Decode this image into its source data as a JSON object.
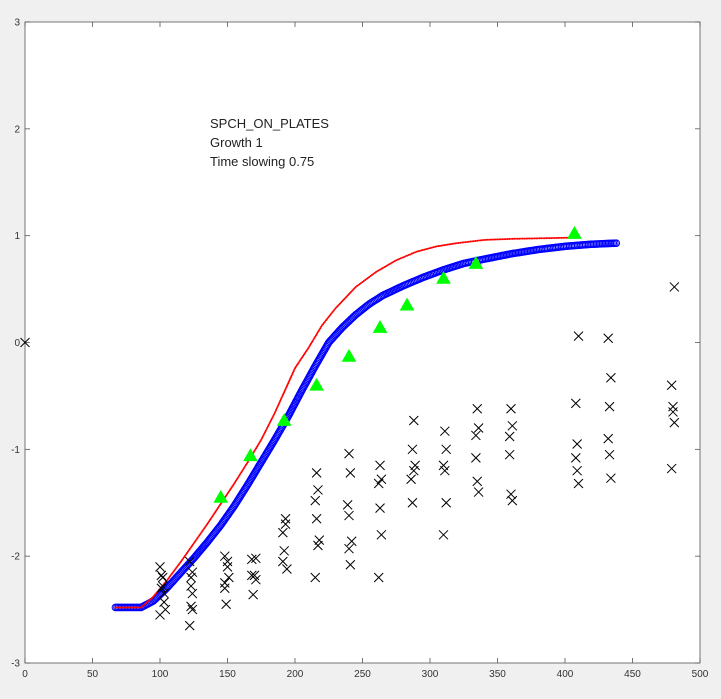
{
  "chart_data": {
    "type": "scatter",
    "title": "",
    "xlabel": "",
    "ylabel": "",
    "xlim": [
      0,
      500
    ],
    "ylim": [
      -3,
      3
    ],
    "xticks": [
      0,
      50,
      100,
      150,
      200,
      250,
      300,
      350,
      400,
      450,
      500
    ],
    "yticks": [
      -3,
      -2,
      -1,
      0,
      1,
      2,
      3
    ],
    "grid": false,
    "legend": "none",
    "annotation_lines": [
      "SPCH_ON_PLATES",
      "Growth 1",
      "Time slowing 0.75"
    ],
    "series": [
      {
        "kind": "line-dots",
        "color": "#ff0000",
        "x": [
          67,
          86,
          95,
          105,
          115,
          125,
          135,
          145,
          155,
          165,
          175,
          185,
          195,
          200,
          210,
          220,
          230,
          245,
          260,
          275,
          290,
          305,
          320,
          340,
          360,
          380,
          400,
          410
        ],
        "y": [
          -2.48,
          -2.48,
          -2.38,
          -2.23,
          -2.06,
          -1.88,
          -1.7,
          -1.51,
          -1.32,
          -1.12,
          -0.91,
          -0.66,
          -0.38,
          -0.24,
          -0.05,
          0.16,
          0.32,
          0.52,
          0.66,
          0.77,
          0.85,
          0.9,
          0.93,
          0.96,
          0.97,
          0.975,
          0.98,
          0.98
        ]
      },
      {
        "kind": "circles",
        "color": "#0000ff",
        "x": [
          67,
          86,
          95,
          105,
          115,
          125,
          135,
          145,
          155,
          165,
          175,
          185,
          195,
          205,
          215,
          225,
          235,
          245,
          255,
          265,
          280,
          295,
          310,
          325,
          340,
          360,
          380,
          400,
          420,
          438
        ],
        "y": [
          -2.48,
          -2.48,
          -2.42,
          -2.3,
          -2.16,
          -2.02,
          -1.87,
          -1.71,
          -1.53,
          -1.33,
          -1.12,
          -0.91,
          -0.69,
          -0.45,
          -0.22,
          0.0,
          0.14,
          0.26,
          0.36,
          0.44,
          0.53,
          0.61,
          0.68,
          0.74,
          0.78,
          0.83,
          0.87,
          0.9,
          0.92,
          0.93
        ]
      },
      {
        "kind": "triangles",
        "color": "#00ff00",
        "x": [
          145,
          167,
          192,
          216,
          240,
          263,
          283,
          310,
          334,
          407
        ],
        "y": [
          -1.45,
          -1.06,
          -0.73,
          -0.4,
          -0.13,
          0.14,
          0.35,
          0.6,
          0.74,
          1.02
        ]
      },
      {
        "kind": "crosses",
        "color": "#000000",
        "x": [
          0,
          100,
          102,
          103,
          104,
          100,
          101,
          102,
          103,
          101,
          122,
          123,
          124,
          122,
          123,
          124,
          123,
          124,
          148,
          150,
          148,
          149,
          151,
          150,
          148,
          168,
          170,
          169,
          171,
          168,
          171,
          193,
          191,
          192,
          194,
          191,
          193,
          216,
          217,
          215,
          216,
          218,
          215,
          217,
          240,
          241,
          239,
          240,
          242,
          240,
          241,
          263,
          264,
          262,
          263,
          264,
          262,
          288,
          287,
          289,
          288,
          286,
          287,
          311,
          312,
          310,
          311,
          312,
          310,
          335,
          336,
          334,
          335,
          336,
          334,
          360,
          361,
          359,
          360,
          361,
          359,
          410,
          408,
          409,
          408,
          410,
          409,
          432,
          434,
          433,
          432,
          433,
          434,
          481,
          479,
          480,
          481,
          479,
          480
        ],
        "y": [
          0.0,
          -2.1,
          -2.2,
          -2.35,
          -2.5,
          -2.55,
          -2.18,
          -2.28,
          -2.43,
          -2.3,
          -2.05,
          -2.2,
          -2.35,
          -2.65,
          -2.47,
          -2.15,
          -2.28,
          -2.5,
          -2.0,
          -2.1,
          -2.3,
          -2.45,
          -2.2,
          -2.05,
          -2.25,
          -2.03,
          -2.18,
          -2.36,
          -2.22,
          -2.18,
          -2.02,
          -1.65,
          -1.78,
          -1.95,
          -2.12,
          -2.05,
          -1.7,
          -1.22,
          -1.38,
          -1.48,
          -1.65,
          -1.85,
          -2.2,
          -1.9,
          -1.04,
          -1.22,
          -1.52,
          -1.62,
          -1.86,
          -1.93,
          -2.08,
          -1.15,
          -1.28,
          -1.32,
          -1.55,
          -1.8,
          -2.2,
          -0.73,
          -1.0,
          -1.15,
          -1.2,
          -1.28,
          -1.5,
          -0.83,
          -1.0,
          -1.15,
          -1.2,
          -1.5,
          -1.8,
          -0.62,
          -0.8,
          -1.08,
          -1.3,
          -1.4,
          -0.87,
          -0.62,
          -0.78,
          -0.88,
          -1.42,
          -1.48,
          -1.05,
          0.06,
          -0.57,
          -0.95,
          -1.08,
          -1.32,
          -1.2,
          0.04,
          -0.33,
          -0.6,
          -0.9,
          -1.05,
          -1.27,
          0.52,
          -0.4,
          -0.65,
          -0.75,
          -1.18,
          -0.6
        ]
      }
    ]
  }
}
